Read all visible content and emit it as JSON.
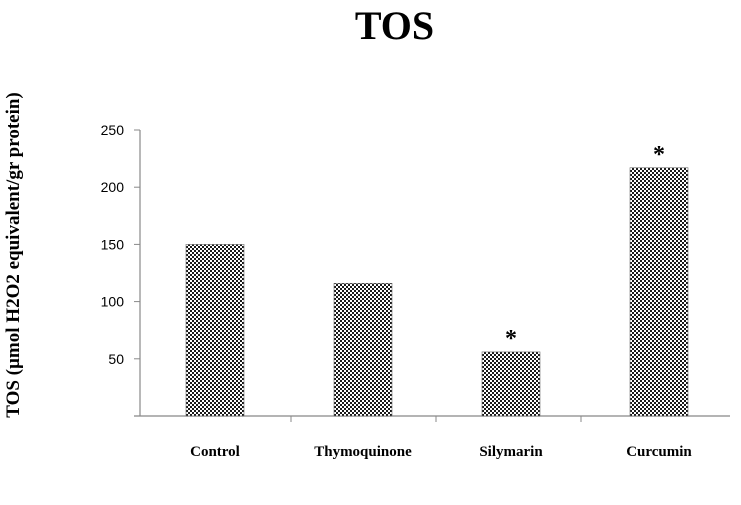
{
  "chart_data": {
    "type": "bar",
    "title": "TOS",
    "xlabel": "",
    "ylabel": "TOS (µmol H2O2 equivalent/gr protein)",
    "categories": [
      "Control",
      "Thymoquinone",
      "Silymarin",
      "Curcumin"
    ],
    "values": [
      150,
      116,
      56,
      217
    ],
    "significance": [
      "",
      "",
      "*",
      "*"
    ],
    "ylim": [
      0,
      250
    ],
    "yticks": [
      50,
      100,
      150,
      200,
      250
    ],
    "grid": false,
    "legend": "none",
    "bar_pattern": "checkerboard",
    "colors": {
      "bar_dark": "#1a1a1a",
      "bar_light": "#ffffff",
      "axis": "#888888",
      "text": "#000000"
    }
  }
}
